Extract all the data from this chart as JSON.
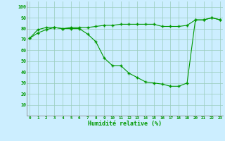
{
  "x": [
    0,
    1,
    2,
    3,
    4,
    5,
    6,
    7,
    8,
    9,
    10,
    11,
    12,
    13,
    14,
    15,
    16,
    17,
    18,
    19,
    20,
    21,
    22,
    23
  ],
  "line1": [
    71,
    79,
    81,
    81,
    80,
    81,
    81,
    81,
    82,
    83,
    83,
    84,
    84,
    84,
    84,
    84,
    82,
    82,
    82,
    83,
    88,
    88,
    90,
    88
  ],
  "line2": [
    71,
    76,
    79,
    81,
    80,
    80,
    80,
    75,
    68,
    53,
    46,
    46,
    39,
    35,
    31,
    30,
    29,
    27,
    27,
    30,
    88,
    88,
    90,
    88
  ],
  "bg_color": "#cceeff",
  "grid_color": "#99ccbb",
  "line_color": "#009900",
  "xlabel": "Humidité relative (%)",
  "ylim": [
    0,
    105
  ],
  "yticks": [
    10,
    20,
    30,
    40,
    50,
    60,
    70,
    80,
    90,
    100
  ],
  "xlim": [
    -0.3,
    23.3
  ]
}
